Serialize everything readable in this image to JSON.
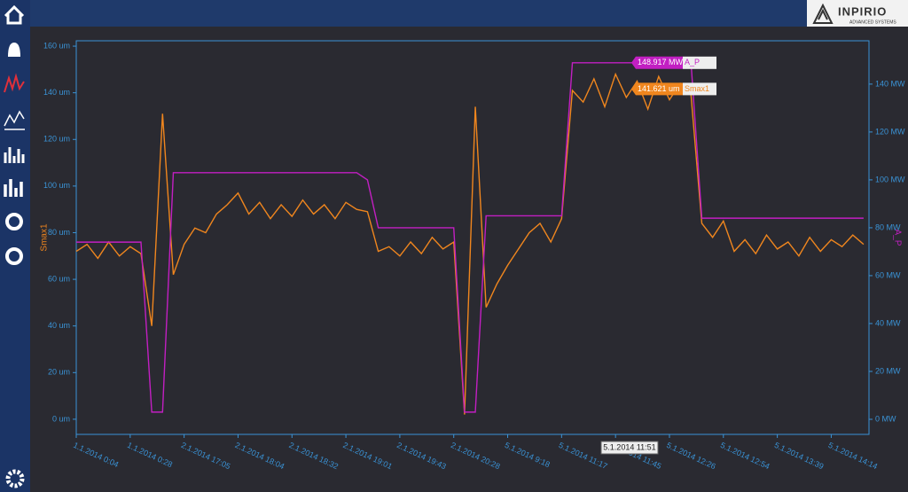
{
  "header": {
    "brand": "INPIRIO",
    "tagline": "ADVANCED SYSTEMS"
  },
  "chart_data": {
    "type": "line",
    "y_label": "Smax1",
    "y2_label": "A_P",
    "xlim": [
      0,
      73.5
    ],
    "xticks": [
      {
        "value": 0,
        "label": "1.1.2014 0:04"
      },
      {
        "value": 5,
        "label": "1.1.2014 0:28"
      },
      {
        "value": 10,
        "label": "2.1.2014 17:05"
      },
      {
        "value": 15,
        "label": "2.1.2014 18:04"
      },
      {
        "value": 20,
        "label": "2.1.2014 18:32"
      },
      {
        "value": 25,
        "label": "2.1.2014 19:01"
      },
      {
        "value": 30,
        "label": "2.1.2014 19:43"
      },
      {
        "value": 35,
        "label": "2.1.2014 20:28"
      },
      {
        "value": 40,
        "label": "5.1.2014 9:18"
      },
      {
        "value": 45,
        "label": "5.1.2014 11:17"
      },
      {
        "value": 50,
        "label": "5.1.2014 11:45"
      },
      {
        "value": 55,
        "label": "5.1.2014 12:26"
      },
      {
        "value": 60,
        "label": "5.1.2014 12:54"
      },
      {
        "value": 65,
        "label": "5.1.2014 13:39"
      },
      {
        "value": 70,
        "label": "5.1.2014 14:14"
      }
    ],
    "ylim": [
      -6.5,
      162.3
    ],
    "yticks": [
      {
        "value": 0,
        "label": "0 um"
      },
      {
        "value": 20,
        "label": "20 um"
      },
      {
        "value": 40,
        "label": "40 um"
      },
      {
        "value": 60,
        "label": "60 um"
      },
      {
        "value": 80,
        "label": "80 um"
      },
      {
        "value": 100,
        "label": "100 um"
      },
      {
        "value": 120,
        "label": "120 um"
      },
      {
        "value": 140,
        "label": "140 um"
      },
      {
        "value": 160,
        "label": "160 um"
      }
    ],
    "y2lim": [
      -6.3,
      158.1
    ],
    "y2ticks": [
      {
        "value": 0,
        "label": "0 MW"
      },
      {
        "value": 20,
        "label": "20 MW"
      },
      {
        "value": 40,
        "label": "40 MW"
      },
      {
        "value": 60,
        "label": "60 MW"
      },
      {
        "value": 80,
        "label": "80 MW"
      },
      {
        "value": 100,
        "label": "100 MW"
      },
      {
        "value": 120,
        "label": "120 MW"
      },
      {
        "value": 140,
        "label": "140 MW"
      }
    ],
    "series": [
      {
        "name": "Smax1",
        "color": "#f0861e",
        "values": [
          72,
          75,
          69,
          76,
          70,
          74,
          71,
          40,
          131,
          62,
          75,
          82,
          80,
          88,
          92,
          97,
          88,
          93,
          86,
          92,
          87,
          94,
          88,
          92,
          86,
          93,
          90,
          89,
          72,
          74,
          70,
          76,
          71,
          78,
          73,
          76,
          2,
          134,
          48,
          58,
          66,
          73,
          80,
          84,
          76,
          86,
          141,
          136,
          146,
          134,
          148,
          138,
          145,
          133,
          147,
          137,
          144,
          139,
          84,
          78,
          85,
          72,
          77,
          71,
          79,
          73,
          76,
          70,
          78,
          72,
          77,
          74,
          79,
          75
        ]
      },
      {
        "name": "A_P",
        "color": "#c21fc2",
        "axis": "y2",
        "values": [
          74,
          74,
          74,
          74,
          74,
          74,
          74,
          3,
          3,
          103,
          103,
          103,
          103,
          103,
          103,
          103,
          103,
          103,
          103,
          103,
          103,
          103,
          103,
          103,
          103,
          103,
          103,
          100,
          80,
          80,
          80,
          80,
          80,
          80,
          80,
          80,
          3,
          3,
          85,
          85,
          85,
          85,
          85,
          85,
          85,
          85,
          148.9,
          148.9,
          148.9,
          148.9,
          148.9,
          148.9,
          148.9,
          148.9,
          148.9,
          148.9,
          148.9,
          148.9,
          84,
          84,
          84,
          84,
          84,
          84,
          84,
          84,
          84,
          84,
          84,
          84,
          84,
          84,
          84,
          84
        ]
      }
    ],
    "tooltip": {
      "x_label": "5.1.2014 11:51",
      "values": [
        141.621,
        148.917
      ],
      "value_labels": [
        "141.621 um",
        "148.917 MW"
      ]
    }
  }
}
